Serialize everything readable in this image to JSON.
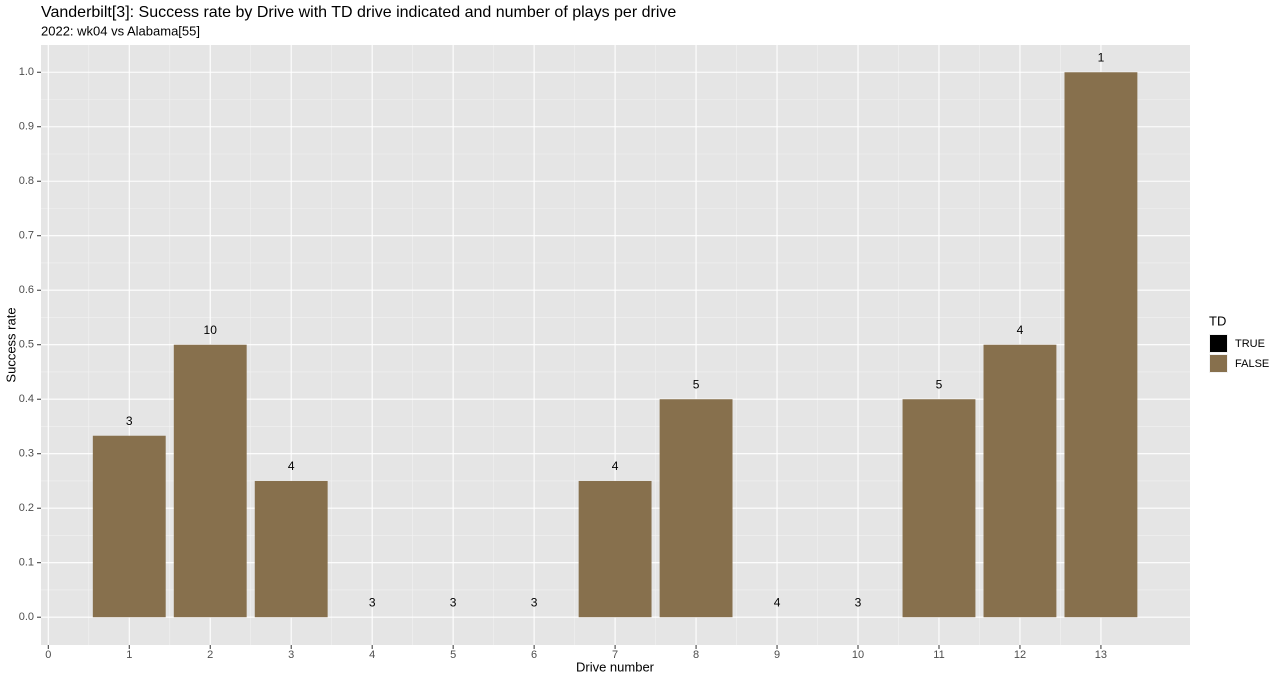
{
  "chart_data": {
    "type": "bar",
    "title": "Vanderbilt[3]: Success rate by Drive with TD drive indicated and number of plays per drive",
    "subtitle": "2022: wk04 vs Alabama[55]",
    "x_label": "Drive number",
    "y_label": "Success rate",
    "x": [
      1,
      2,
      3,
      4,
      5,
      6,
      7,
      8,
      9,
      10,
      11,
      12,
      13
    ],
    "series": [
      {
        "name": "TRUE",
        "color": "#000000",
        "values": [
          null,
          null,
          null,
          null,
          null,
          null,
          null,
          null,
          null,
          null,
          null,
          null,
          null
        ]
      },
      {
        "name": "FALSE",
        "color": "#87704d",
        "values": [
          0.333,
          0.5,
          0.25,
          0,
          0,
          0,
          0.25,
          0.4,
          0,
          0,
          0.4,
          0.5,
          1.0
        ]
      }
    ],
    "plays": [
      3,
      10,
      4,
      3,
      3,
      3,
      4,
      5,
      4,
      3,
      5,
      4,
      1
    ],
    "legend_title": "TD",
    "xlim": [
      -0.09,
      14.1
    ],
    "xticks": [
      0,
      1,
      2,
      3,
      4,
      5,
      6,
      7,
      8,
      9,
      10,
      11,
      12,
      13
    ],
    "ylim": [
      -0.051,
      1.05
    ],
    "yticks": [
      {
        "value": 0,
        "label": "0.0"
      },
      0.1,
      0.2,
      0.3,
      0.4,
      0.5,
      0.6,
      0.7,
      0.8,
      0.9,
      {
        "value": 1,
        "label": "1.0"
      }
    ],
    "grid": true,
    "legend_position": "right"
  }
}
